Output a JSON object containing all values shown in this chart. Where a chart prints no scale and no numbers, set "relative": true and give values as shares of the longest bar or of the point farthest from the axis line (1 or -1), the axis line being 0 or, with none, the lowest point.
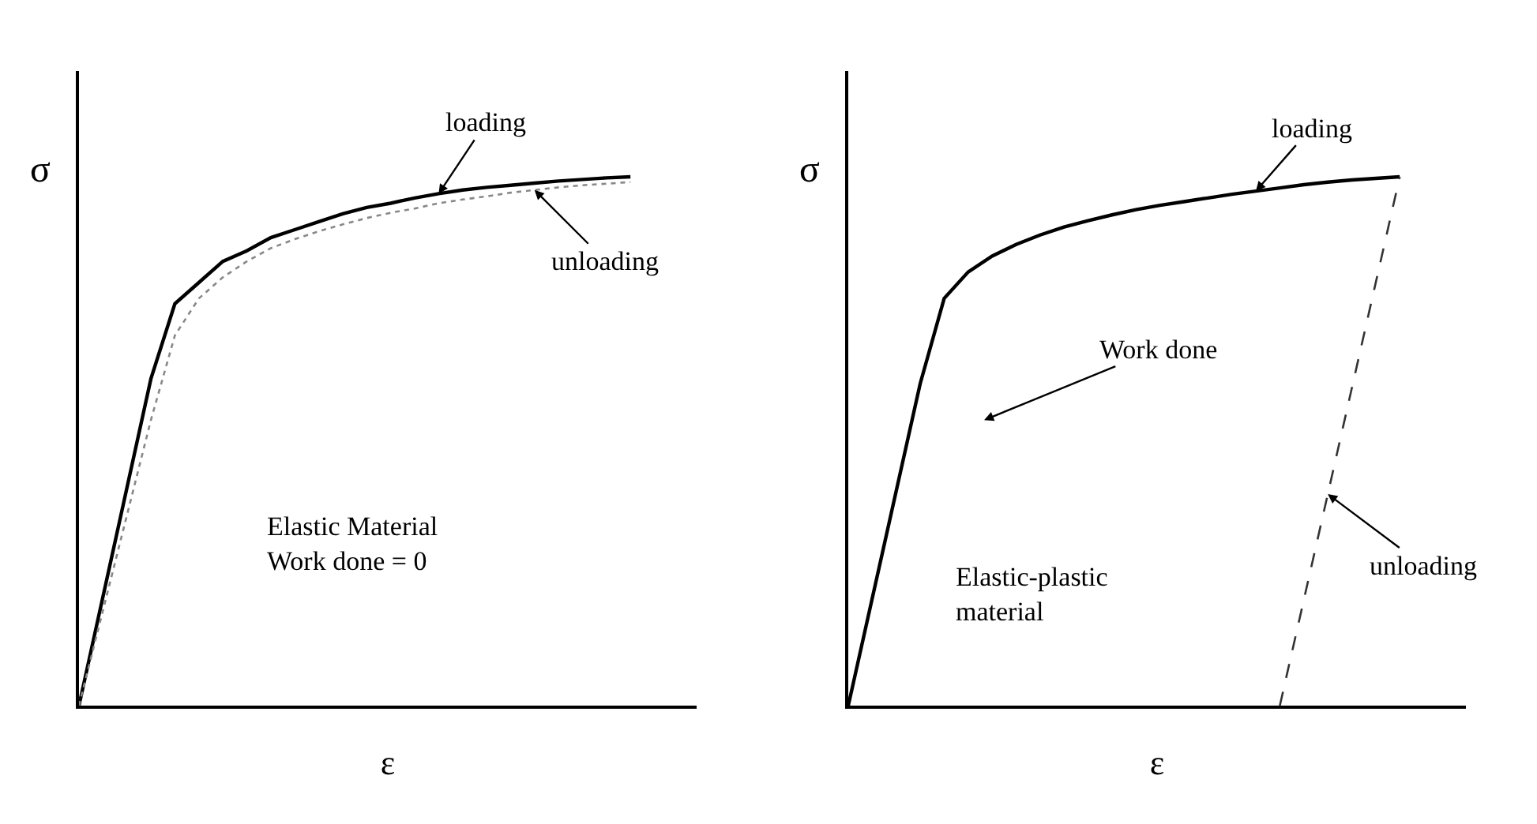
{
  "chart_data": [
    {
      "type": "line",
      "relative": true,
      "xlabel": "ε",
      "ylabel": "σ",
      "marker": "none",
      "categories": [
        null,
        null,
        null,
        null,
        null,
        null,
        null,
        null,
        null,
        null,
        null,
        null,
        null,
        null,
        null,
        null,
        null,
        null,
        null,
        null,
        null,
        null,
        null,
        null
      ],
      "series": [
        {
          "color": "#000000",
          "line_style": "solid",
          "values": [
            0,
            0.206,
            0.412,
            0.618,
            0.76,
            0.8,
            0.84,
            0.86,
            0.885,
            0.9,
            0.915,
            0.93,
            0.942,
            0.95,
            0.96,
            0.968,
            0.975,
            0.98,
            0.984,
            0.988,
            0.992,
            0.995,
            0.998,
            1
          ]
        },
        {
          "color": "#888888",
          "line_style": "dotted",
          "values": [
            0,
            0.18,
            0.36,
            0.54,
            0.7,
            0.77,
            0.81,
            0.84,
            0.865,
            0.882,
            0.897,
            0.91,
            0.922,
            0.932,
            0.94,
            0.95,
            0.957,
            0.963,
            0.97,
            0.975,
            0.98,
            0.984,
            0.987,
            0.99
          ]
        }
      ],
      "annotations": [
        "loading",
        "unloading",
        "Elastic Material\nWork done = 0"
      ]
    },
    {
      "type": "line",
      "relative": true,
      "xlabel": "ε",
      "ylabel": "σ",
      "marker": "none",
      "categories": [
        null,
        null,
        null,
        null,
        null,
        null,
        null,
        null,
        null,
        null,
        null,
        null,
        null,
        null,
        null,
        null,
        null,
        null,
        null,
        null,
        null,
        null,
        null,
        null
      ],
      "series": [
        {
          "color": "#000000",
          "line_style": "solid",
          "values": [
            0,
            0.203,
            0.406,
            0.609,
            0.77,
            0.82,
            0.85,
            0.872,
            0.89,
            0.905,
            0.917,
            0.928,
            0.938,
            0.946,
            0.953,
            0.96,
            0.967,
            0.973,
            0.979,
            0.985,
            0.99,
            0.994,
            0.997,
            1
          ]
        },
        {
          "color": "#333333",
          "line_style": "dashed",
          "values": [
            null,
            null,
            null,
            null,
            null,
            null,
            null,
            null,
            null,
            null,
            null,
            null,
            null,
            null,
            null,
            null,
            null,
            null,
            0,
            0.2,
            0.4,
            0.6,
            0.8,
            1
          ]
        }
      ],
      "annotations": [
        "loading",
        "Work done",
        "unloading",
        "Elastic-plastic\nmaterial"
      ]
    }
  ]
}
